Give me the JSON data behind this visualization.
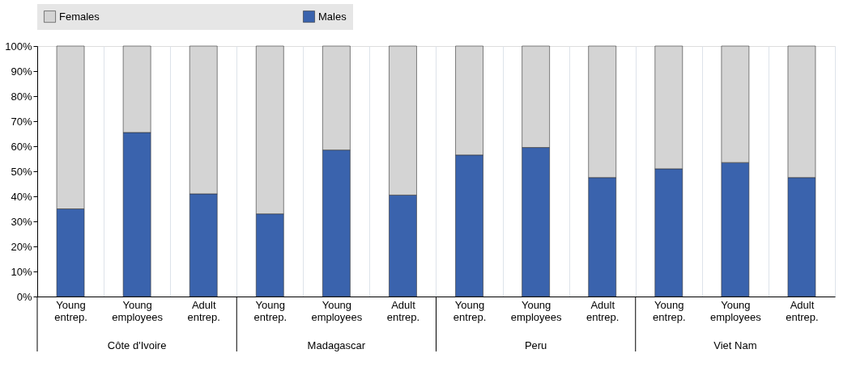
{
  "chart_data": {
    "type": "bar",
    "stacked": true,
    "categories": [
      "Young entrep.",
      "Young employees",
      "Adult entrep.",
      "Young entrep.",
      "Young employees",
      "Adult entrep.",
      "Young entrep.",
      "Young employees",
      "Adult entrep.",
      "Young entrep.",
      "Young employees",
      "Adult entrep."
    ],
    "annotations": [
      "Côte d'Ivoire",
      "Madagascar",
      "Peru",
      "Viet Nam"
    ],
    "series": [
      {
        "name": "Males",
        "color": "#3a63ad",
        "values": [
          35,
          65.5,
          41,
          33,
          58.5,
          40.5,
          56.5,
          59.5,
          47.5,
          51,
          53.5,
          47.5
        ]
      },
      {
        "name": "Females",
        "color": "#d4d4d4",
        "values": [
          65,
          34.5,
          59,
          67,
          41.5,
          59.5,
          43.5,
          40.5,
          52.5,
          49,
          46.5,
          52.5
        ]
      }
    ],
    "ylim": [
      0,
      100
    ],
    "yticks": [
      {
        "value": 0,
        "label": "0%"
      },
      {
        "value": 10,
        "label": "10%"
      },
      {
        "value": 20,
        "label": "20%"
      },
      {
        "value": 30,
        "label": "30%"
      },
      {
        "value": 40,
        "label": "40%"
      },
      {
        "value": 50,
        "label": "50%"
      },
      {
        "value": 60,
        "label": "60%"
      },
      {
        "value": 70,
        "label": "70%"
      },
      {
        "value": 80,
        "label": "80%"
      },
      {
        "value": 90,
        "label": "90%"
      },
      {
        "value": 100,
        "label": "100%"
      }
    ],
    "grid": "x",
    "legend": "top"
  }
}
